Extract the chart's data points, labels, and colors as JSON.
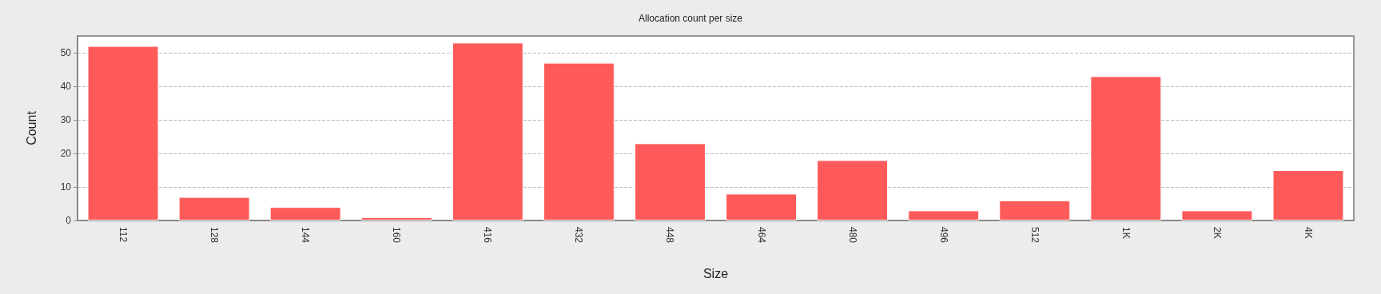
{
  "chart_data": {
    "type": "bar",
    "title": "Allocation count per size",
    "xlabel": "Size",
    "ylabel": "Count",
    "categories": [
      "112",
      "128",
      "144",
      "160",
      "416",
      "432",
      "448",
      "464",
      "480",
      "496",
      "512",
      "1K",
      "2K",
      "4K"
    ],
    "values": [
      52,
      7,
      4,
      1,
      53,
      47,
      23,
      8,
      18,
      3,
      6,
      43,
      3,
      15
    ],
    "color": "#ff5a5a",
    "ylim": [
      0,
      55
    ],
    "yticks": [
      0,
      10,
      20,
      30,
      40,
      50
    ],
    "grid": "y"
  }
}
